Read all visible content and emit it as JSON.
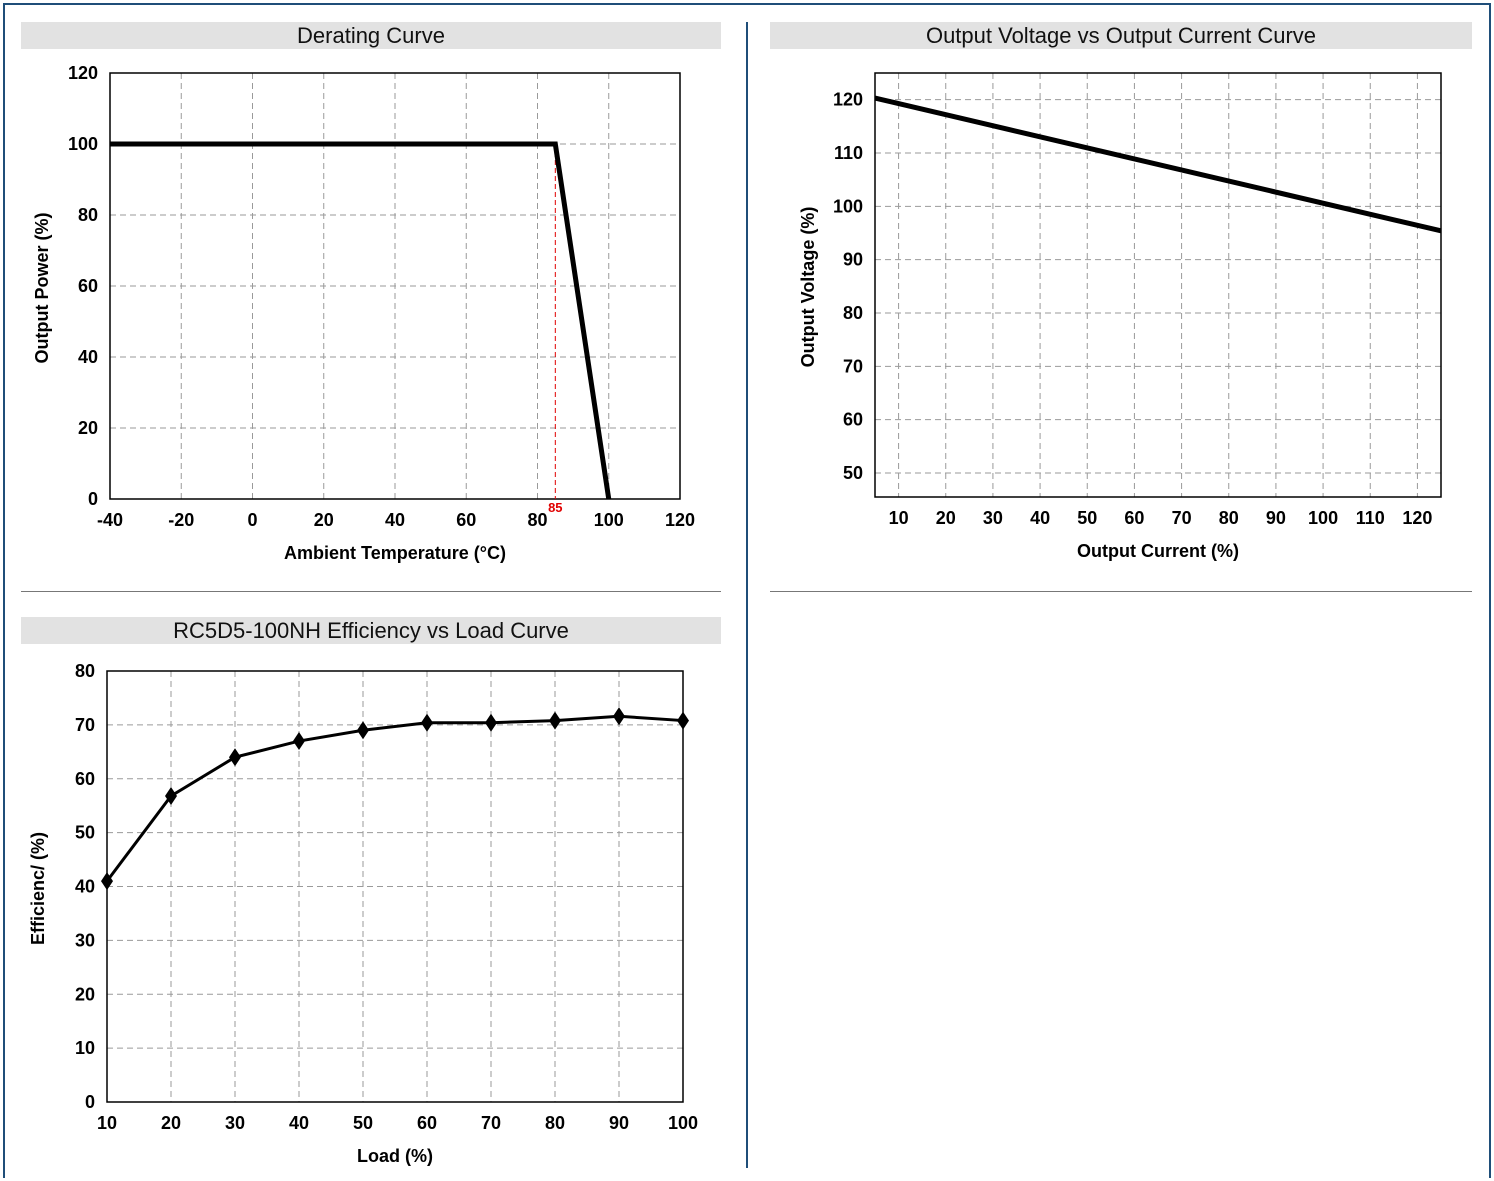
{
  "chart_data": [
    {
      "id": "derating",
      "type": "line",
      "title": "Derating Curve",
      "xlabel": "Ambient Temperature (°C)",
      "ylabel": "Output Power (%)",
      "xlim": [
        -40,
        120
      ],
      "ylim": [
        0,
        120
      ],
      "xticks": [
        -40,
        -20,
        0,
        20,
        40,
        60,
        80,
        100,
        120
      ],
      "yticks": [
        0,
        20,
        40,
        60,
        80,
        100,
        120
      ],
      "grid": true,
      "series": [
        {
          "x": [
            -40,
            85,
            100
          ],
          "y": [
            100,
            100,
            0
          ]
        }
      ],
      "annotations": [
        {
          "text": "85",
          "x": 85,
          "y": 0,
          "color": "#e00000"
        }
      ]
    },
    {
      "id": "voltage-current",
      "type": "line",
      "title": "Output Voltage vs Output Current Curve",
      "xlabel": "Output Current (%)",
      "ylabel": "Output Voltage (%)",
      "xlim": [
        5,
        125
      ],
      "ylim": [
        45.5,
        125
      ],
      "xticks": [
        10,
        20,
        30,
        40,
        50,
        60,
        70,
        80,
        90,
        100,
        110,
        120
      ],
      "yticks": [
        50,
        60,
        70,
        80,
        90,
        100,
        110,
        120
      ],
      "grid": true,
      "series": [
        {
          "x": [
            5,
            125
          ],
          "y": [
            120.3,
            95.4
          ]
        }
      ]
    },
    {
      "id": "efficiency",
      "type": "line",
      "title": "RC5D5-100NH Efficiency vs Load Curve",
      "xlabel": "Load (%)",
      "ylabel": "Efficienc/ (%)",
      "xlim": [
        10,
        100
      ],
      "ylim": [
        0,
        80
      ],
      "xticks": [
        10,
        20,
        30,
        40,
        50,
        60,
        70,
        80,
        90,
        100
      ],
      "yticks": [
        0,
        10,
        20,
        30,
        40,
        50,
        60,
        70,
        80
      ],
      "grid": true,
      "marker": "diamond",
      "series": [
        {
          "x": [
            10,
            20,
            30,
            40,
            50,
            60,
            70,
            80,
            90,
            100
          ],
          "y": [
            41,
            56.8,
            64,
            67,
            69,
            70.4,
            70.4,
            70.8,
            71.6,
            70.8
          ]
        }
      ]
    }
  ]
}
